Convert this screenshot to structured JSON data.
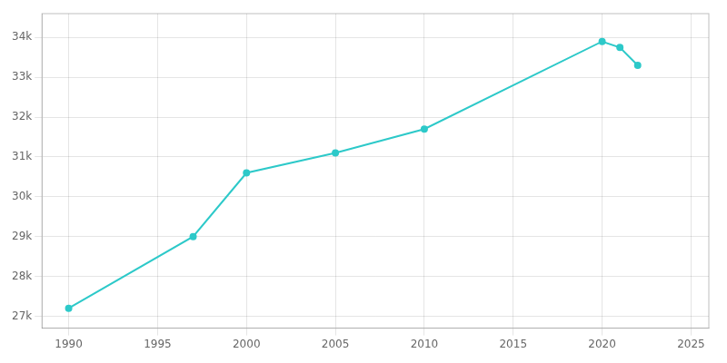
{
  "chart_data": {
    "type": "line",
    "x": [
      1990,
      1997,
      2000,
      2005,
      2010,
      2020,
      2021,
      2022
    ],
    "values": [
      27200,
      29000,
      30600,
      31100,
      31700,
      33900,
      33750,
      33300
    ],
    "color": "#2DC9C9",
    "marker": "circle",
    "xlim": [
      1988.5,
      2026
    ],
    "ylim": [
      26700,
      34600
    ],
    "xticks": [
      1990,
      1995,
      2000,
      2005,
      2010,
      2015,
      2020,
      2025
    ],
    "yticks": [
      {
        "value": 27000,
        "label": "27k"
      },
      {
        "value": 28000,
        "label": "28k"
      },
      {
        "value": 29000,
        "label": "29k"
      },
      {
        "value": 30000,
        "label": "30k"
      },
      {
        "value": 31000,
        "label": "31k"
      },
      {
        "value": 32000,
        "label": "32k"
      },
      {
        "value": 33000,
        "label": "33k"
      },
      {
        "value": 34000,
        "label": "34k"
      }
    ],
    "grid": true
  }
}
